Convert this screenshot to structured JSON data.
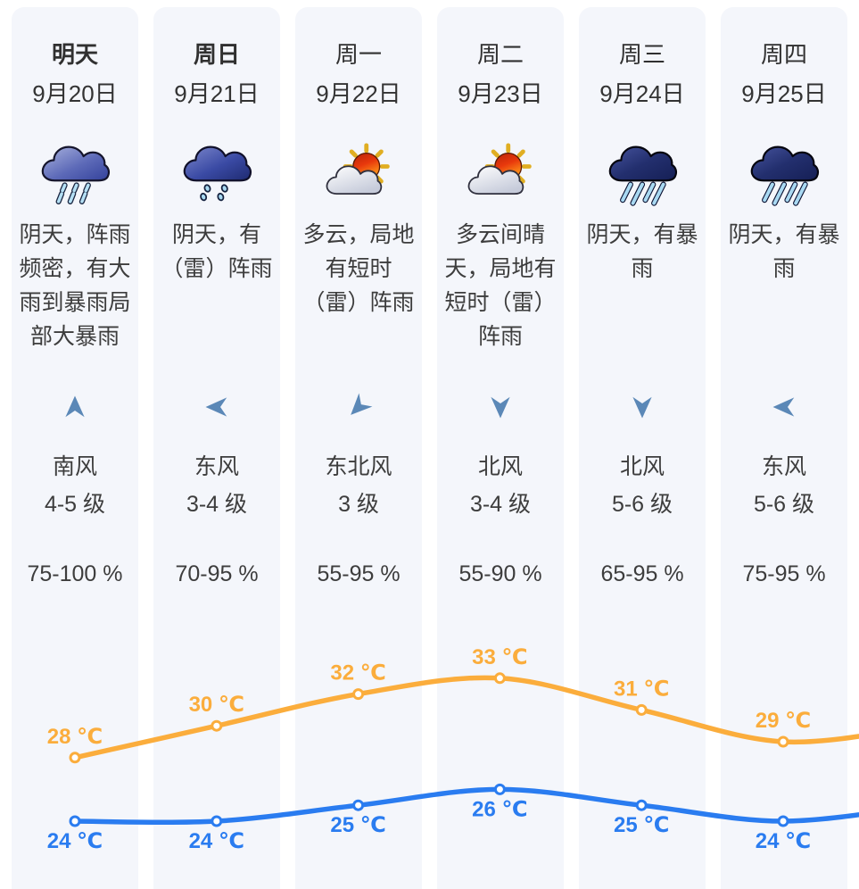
{
  "colors": {
    "card_background": "#f4f6fb",
    "text": "#3d3d3d",
    "wind_arrow": "#5b88b7",
    "high_temp_line": "#fbad3c",
    "low_temp_line": "#2a7cf0"
  },
  "columns": [
    {
      "weekday": "明天",
      "weekday_bold": true,
      "date": "9月20日",
      "icon": "shower-rain",
      "description": "阴天，阵雨频密，有大雨到暴雨局部大暴雨",
      "wind_direction": "南风",
      "wind_level": "4-5 级",
      "wind_arrow_deg": 0,
      "humidity": "75-100 %",
      "high_temp_label": "28 ℃",
      "low_temp_label": "24 ℃"
    },
    {
      "weekday": "周日",
      "weekday_bold": true,
      "date": "9月21日",
      "icon": "drizzle",
      "description": "阴天，有（雷）阵雨",
      "wind_direction": "东风",
      "wind_level": "3-4 级",
      "wind_arrow_deg": 270,
      "humidity": "70-95 %",
      "high_temp_label": "30 ℃",
      "low_temp_label": "24 ℃"
    },
    {
      "weekday": "周一",
      "weekday_bold": false,
      "date": "9月22日",
      "icon": "sun-cloud",
      "description": "多云，局地有短时（雷）阵雨",
      "wind_direction": "东北风",
      "wind_level": "3 级",
      "wind_arrow_deg": 225,
      "humidity": "55-95 %",
      "high_temp_label": "32 ℃",
      "low_temp_label": "25 ℃"
    },
    {
      "weekday": "周二",
      "weekday_bold": false,
      "date": "9月23日",
      "icon": "sun-cloud",
      "description": "多云间晴天，局地有短时（雷）阵雨",
      "wind_direction": "北风",
      "wind_level": "3-4 级",
      "wind_arrow_deg": 180,
      "humidity": "55-90 %",
      "high_temp_label": "33 ℃",
      "low_temp_label": "26 ℃"
    },
    {
      "weekday": "周三",
      "weekday_bold": false,
      "date": "9月24日",
      "icon": "storm-rain",
      "description": "阴天，有暴雨",
      "wind_direction": "北风",
      "wind_level": "5-6 级",
      "wind_arrow_deg": 180,
      "humidity": "65-95 %",
      "high_temp_label": "31 ℃",
      "low_temp_label": "25 ℃"
    },
    {
      "weekday": "周四",
      "weekday_bold": false,
      "date": "9月25日",
      "icon": "storm-rain",
      "description": "阴天，有暴雨",
      "wind_direction": "东风",
      "wind_level": "5-6 级",
      "wind_arrow_deg": 270,
      "humidity": "75-95 %",
      "high_temp_label": "29 ℃",
      "low_temp_label": "24 ℃"
    }
  ],
  "chart_data": {
    "type": "line",
    "categories": [
      "9月20日",
      "9月21日",
      "9月22日",
      "9月23日",
      "9月24日",
      "9月25日"
    ],
    "unit": "℃",
    "series": [
      {
        "name": "high",
        "color": "#fbad3c",
        "label_position": "above",
        "values": [
          28,
          30,
          32,
          33,
          31,
          29
        ]
      },
      {
        "name": "low",
        "color": "#2a7cf0",
        "label_position": "below",
        "values": [
          24,
          24,
          25,
          26,
          25,
          24
        ]
      }
    ],
    "ylim": [
      23,
      34
    ],
    "grid": false,
    "legend": "none",
    "curve": "smooth",
    "markers": "hollow-circle",
    "lines_extend_to_right_edge": true
  }
}
